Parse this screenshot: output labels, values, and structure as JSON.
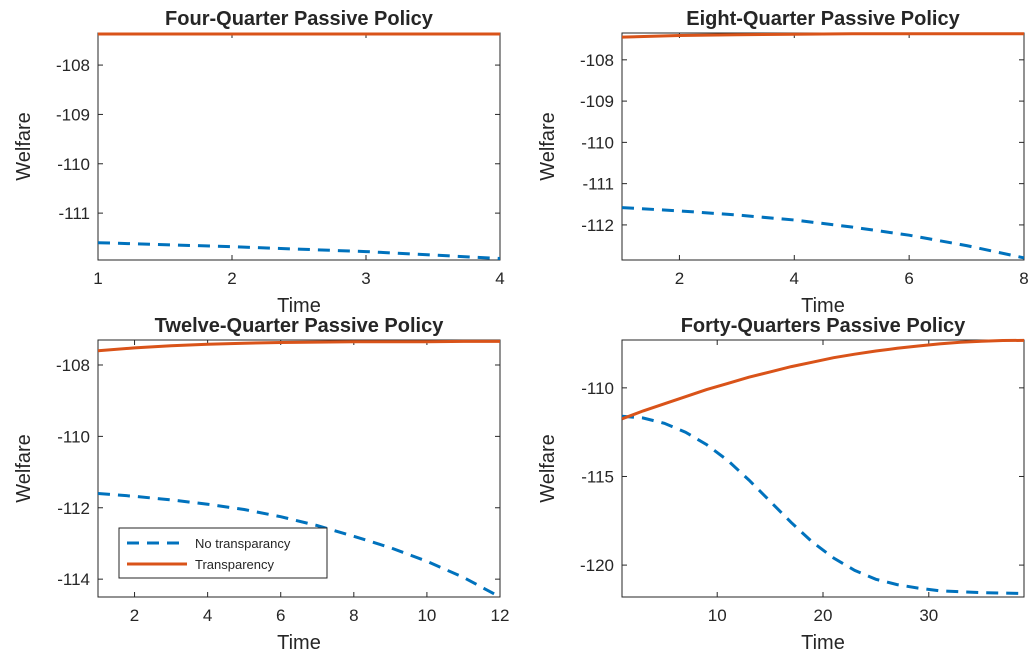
{
  "chart_data": [
    {
      "type": "line",
      "title": "Four-Quarter Passive Policy",
      "xlabel": "Time",
      "ylabel": "Welfare",
      "xlim": [
        1,
        4
      ],
      "ylim": [
        -111.95,
        -107.35
      ],
      "xticks": [
        1,
        2,
        3,
        4
      ],
      "yticks": [
        -111,
        -110,
        -109,
        -108
      ],
      "series": [
        {
          "key": "no_transparency",
          "x": [
            1,
            2,
            3,
            4
          ],
          "y": [
            -111.6,
            -111.68,
            -111.78,
            -111.92
          ]
        },
        {
          "key": "transparency",
          "x": [
            1,
            2,
            3,
            4
          ],
          "y": [
            -107.37,
            -107.37,
            -107.37,
            -107.37
          ]
        }
      ]
    },
    {
      "type": "line",
      "title": "Eight-Quarter Passive Policy",
      "xlabel": "Time",
      "ylabel": "Welfare",
      "xlim": [
        1,
        8
      ],
      "ylim": [
        -112.85,
        -107.35
      ],
      "xticks": [
        2,
        4,
        6,
        8
      ],
      "yticks": [
        -112,
        -111,
        -110,
        -109,
        -108
      ],
      "series": [
        {
          "key": "no_transparency",
          "x": [
            1,
            2,
            3,
            4,
            5,
            6,
            7,
            8
          ],
          "y": [
            -111.58,
            -111.66,
            -111.76,
            -111.88,
            -112.05,
            -112.25,
            -112.5,
            -112.8
          ]
        },
        {
          "key": "transparency",
          "x": [
            1,
            2,
            3,
            4,
            5,
            6,
            7,
            8
          ],
          "y": [
            -107.45,
            -107.41,
            -107.39,
            -107.38,
            -107.37,
            -107.37,
            -107.37,
            -107.37
          ]
        }
      ]
    },
    {
      "type": "line",
      "title": "Twelve-Quarter  Passive Policy",
      "xlabel": "Time",
      "ylabel": "Welfare",
      "xlim": [
        1,
        12
      ],
      "ylim": [
        -114.5,
        -107.3
      ],
      "xticks": [
        2,
        4,
        6,
        8,
        10,
        12
      ],
      "yticks": [
        -114,
        -112,
        -110,
        -108
      ],
      "legend": {
        "position": "lower-left",
        "entries": [
          {
            "key": "no_transparency",
            "label": "No transparancy"
          },
          {
            "key": "transparency",
            "label": "Transparency"
          }
        ]
      },
      "series": [
        {
          "key": "no_transparency",
          "x": [
            1,
            2,
            3,
            4,
            5,
            6,
            7,
            8,
            9,
            10,
            11,
            12
          ],
          "y": [
            -111.6,
            -111.68,
            -111.78,
            -111.9,
            -112.05,
            -112.25,
            -112.5,
            -112.8,
            -113.12,
            -113.5,
            -113.95,
            -114.5
          ]
        },
        {
          "key": "transparency",
          "x": [
            1,
            2,
            3,
            4,
            5,
            6,
            7,
            8,
            9,
            10,
            11,
            12
          ],
          "y": [
            -107.6,
            -107.52,
            -107.46,
            -107.42,
            -107.39,
            -107.37,
            -107.36,
            -107.35,
            -107.35,
            -107.35,
            -107.34,
            -107.34
          ]
        }
      ]
    },
    {
      "type": "line",
      "title": "Forty-Quarters  Passive Policy",
      "xlabel": "Time",
      "ylabel": "Welfare",
      "xlim": [
        1,
        39
      ],
      "ylim": [
        -121.8,
        -107.3
      ],
      "xticks": [
        10,
        20,
        30
      ],
      "yticks": [
        -120,
        -115,
        -110
      ],
      "series": [
        {
          "key": "no_transparency",
          "x": [
            1,
            3,
            5,
            7,
            9,
            11,
            13,
            15,
            17,
            19,
            21,
            23,
            25,
            27,
            29,
            31,
            33,
            35,
            37,
            39
          ],
          "y": [
            -111.6,
            -111.7,
            -112.0,
            -112.5,
            -113.2,
            -114.1,
            -115.2,
            -116.4,
            -117.6,
            -118.7,
            -119.6,
            -120.3,
            -120.8,
            -121.1,
            -121.3,
            -121.45,
            -121.5,
            -121.55,
            -121.58,
            -121.6
          ]
        },
        {
          "key": "transparency",
          "x": [
            1,
            3,
            5,
            7,
            9,
            11,
            13,
            15,
            17,
            19,
            21,
            23,
            25,
            27,
            29,
            31,
            33,
            35,
            37,
            39
          ],
          "y": [
            -111.75,
            -111.3,
            -110.9,
            -110.5,
            -110.1,
            -109.75,
            -109.4,
            -109.1,
            -108.8,
            -108.55,
            -108.3,
            -108.1,
            -107.92,
            -107.77,
            -107.64,
            -107.52,
            -107.43,
            -107.37,
            -107.33,
            -107.32
          ]
        }
      ]
    }
  ],
  "colors": {
    "no_transparency": "#0072BD",
    "transparency": "#D95319",
    "axis": "#262626"
  }
}
